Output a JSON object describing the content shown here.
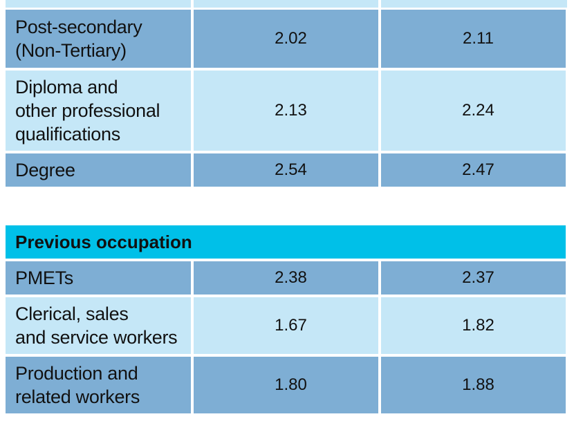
{
  "education_rows": [
    {
      "label": "Post-secondary\n(Non-Tertiary)",
      "v1": "2.02",
      "v2": "2.11"
    },
    {
      "label": "Diploma and\nother professional\nqualifications",
      "v1": "2.13",
      "v2": "2.24"
    },
    {
      "label": "Degree",
      "v1": "2.54",
      "v2": "2.47"
    }
  ],
  "occupation_section": {
    "title": "Previous occupation",
    "rows": [
      {
        "label": "PMETs",
        "v1": "2.38",
        "v2": "2.37"
      },
      {
        "label": "Clerical, sales\nand service workers",
        "v1": "1.67",
        "v2": "1.82"
      },
      {
        "label": "Production and\nrelated workers",
        "v1": "1.80",
        "v2": "1.88"
      }
    ]
  }
}
